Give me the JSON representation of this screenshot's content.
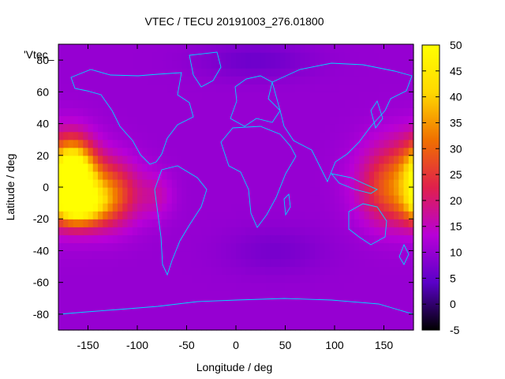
{
  "chart_data": {
    "type": "heatmap",
    "title": "VTEC / TECU 20191003_276.01800",
    "xlabel": "Longitude / deg",
    "ylabel": "Latitude / deg",
    "series_key": "'Vtec_",
    "xlim": [
      -180,
      180
    ],
    "ylim": [
      -90,
      90
    ],
    "x_ticks": [
      -150,
      -100,
      -50,
      0,
      50,
      100,
      150
    ],
    "x_tick_labels": [
      "-150",
      "-100",
      "-50",
      "0",
      "50",
      "100",
      "150"
    ],
    "y_ticks": [
      -80,
      -60,
      -40,
      -20,
      0,
      20,
      40,
      60,
      80
    ],
    "y_tick_labels": [
      "-80",
      "-60",
      "-40",
      "-20",
      "0",
      "20",
      "40",
      "60",
      "80"
    ],
    "colorbar": {
      "range": [
        -5,
        50
      ],
      "ticks": [
        -5,
        0,
        5,
        10,
        15,
        20,
        25,
        30,
        35,
        40,
        45,
        50
      ],
      "tick_labels": [
        "-5",
        "0",
        "5",
        "10",
        "15",
        "20",
        "25",
        "30",
        "35",
        "40",
        "45",
        "50"
      ],
      "palette": [
        "#000000",
        "#5a00c8",
        "#b800d8",
        "#e0204c",
        "#f07000",
        "#ffd800",
        "#ffff00"
      ]
    },
    "field": {
      "background_tecu": 10,
      "anomalies": [
        {
          "lon": -165,
          "lat": 8,
          "slon": 14,
          "slat": 14,
          "amp": 38
        },
        {
          "lon": -160,
          "lat": -12,
          "slon": 18,
          "slat": 8,
          "amp": 26
        },
        {
          "lon": -130,
          "lat": -4,
          "slon": 22,
          "slat": 14,
          "amp": 20
        },
        {
          "lon": 175,
          "lat": 5,
          "slon": 30,
          "slat": 18,
          "amp": 20
        },
        {
          "lon": 150,
          "lat": -5,
          "slon": 18,
          "slat": 14,
          "amp": 6
        },
        {
          "lon": -80,
          "lat": -5,
          "slon": 12,
          "slat": 10,
          "amp": 5
        },
        {
          "lon": 20,
          "lat": 80,
          "slon": 40,
          "slat": 8,
          "amp": -4
        },
        {
          "lon": 40,
          "lat": -40,
          "slon": 35,
          "slat": 10,
          "amp": -3
        }
      ]
    }
  },
  "colors": {
    "coastline": "#00d8ff",
    "background": "#ffffff"
  }
}
